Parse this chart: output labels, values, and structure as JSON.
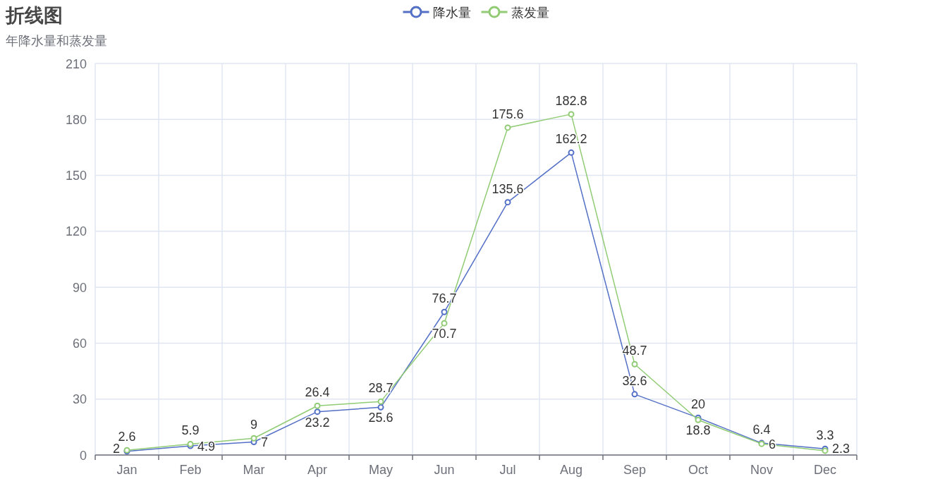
{
  "chart_data": {
    "type": "line",
    "title": "折线图",
    "subtitle": "年降水量和蒸发量",
    "categories": [
      "Jan",
      "Feb",
      "Mar",
      "Apr",
      "May",
      "Jun",
      "Jul",
      "Aug",
      "Sep",
      "Oct",
      "Nov",
      "Dec"
    ],
    "series": [
      {
        "name": "降水量",
        "color": "#5470c6",
        "values": [
          2,
          4.9,
          7,
          23.2,
          25.6,
          76.7,
          135.6,
          162.2,
          32.6,
          20,
          6.4,
          3.3
        ]
      },
      {
        "name": "蒸发量",
        "color": "#91cc75",
        "values": [
          2.6,
          5.9,
          9,
          26.4,
          28.7,
          70.7,
          175.6,
          182.8,
          48.7,
          18.8,
          6,
          2.3
        ]
      }
    ],
    "ylim": [
      0,
      210
    ],
    "yticks": [
      0,
      30,
      60,
      90,
      120,
      150,
      180,
      210
    ],
    "grid": true,
    "legend": "top",
    "marker": "circle",
    "line_style": "solid",
    "data_labels": true
  }
}
